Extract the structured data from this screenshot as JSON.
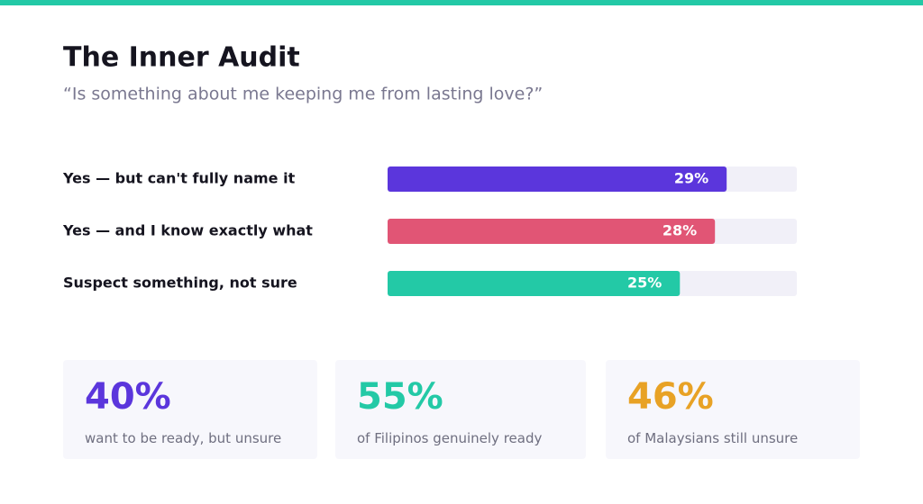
{
  "chart_data": {
    "type": "bar",
    "orientation": "horizontal",
    "title": "The Inner Audit",
    "subtitle": "“Is something about me keeping me from lasting love?”",
    "categories": [
      "Yes — but can't fully name it",
      "Yes — and I know exactly what",
      "Suspect something, not sure"
    ],
    "values": [
      29,
      28,
      25
    ],
    "value_labels": [
      "29%",
      "28%",
      "25%"
    ],
    "colors": [
      "#5b36dc",
      "#e15575",
      "#23c9a6"
    ],
    "xlim": [
      0,
      35
    ]
  },
  "stats": [
    {
      "figure": "40%",
      "caption": "want to be ready, but unsure",
      "color": "#5b36dc"
    },
    {
      "figure": "55%",
      "caption": "of Filipinos genuinely ready",
      "color": "#23c9a6"
    },
    {
      "figure": "46%",
      "caption": "of Malaysians still unsure",
      "color": "#e8a225"
    }
  ]
}
